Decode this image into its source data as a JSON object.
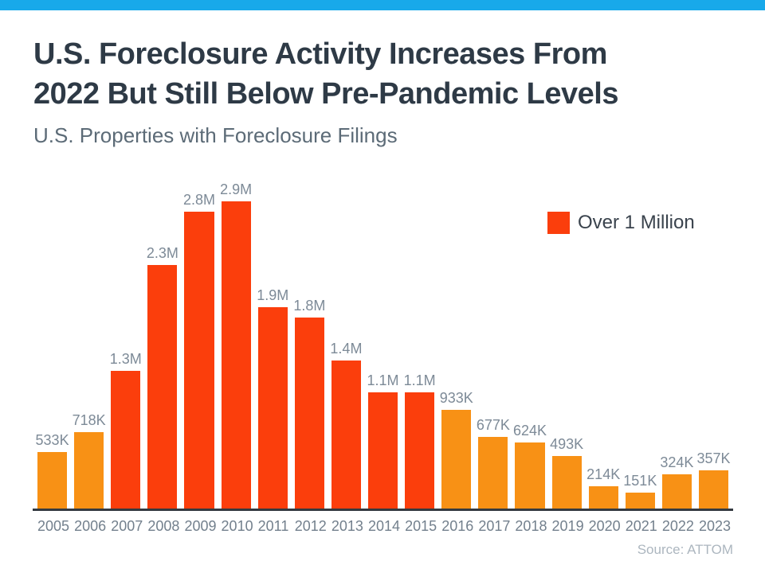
{
  "page": {
    "background": "#FFFFFF",
    "top_bar_color": "#18A9EA"
  },
  "header": {
    "title_lines": [
      "U.S. Foreclosure Activity Increases From",
      "2022 But Still Below Pre-Pandemic Levels"
    ],
    "subtitle": "U.S. Properties with Foreclosure Filings"
  },
  "legend": {
    "label": "Over 1 Million",
    "swatch_color": "#FB3E0C"
  },
  "source": {
    "text": "Source: ATTOM"
  },
  "chart_data": {
    "type": "bar",
    "title": "U.S. Properties with Foreclosure Filings",
    "xlabel": "",
    "ylabel": "",
    "categories": [
      "2005",
      "2006",
      "2007",
      "2008",
      "2009",
      "2010",
      "2011",
      "2012",
      "2013",
      "2014",
      "2015",
      "2016",
      "2017",
      "2018",
      "2019",
      "2020",
      "2021",
      "2022",
      "2023"
    ],
    "values": [
      0.533,
      0.718,
      1.3,
      2.3,
      2.8,
      2.9,
      1.9,
      1.8,
      1.4,
      1.1,
      1.1,
      0.933,
      0.677,
      0.624,
      0.493,
      0.214,
      0.151,
      0.324,
      0.357
    ],
    "labels": [
      "533K",
      "718K",
      "1.3M",
      "2.3M",
      "2.8M",
      "2.9M",
      "1.9M",
      "1.8M",
      "1.4M",
      "1.1M",
      "1.1M",
      "933K",
      "677K",
      "624K",
      "493K",
      "214K",
      "151K",
      "324K",
      "357K"
    ],
    "ylim": [
      0,
      2.9
    ],
    "grid": false,
    "legend_position": "right",
    "threshold_over_color": 1.0,
    "colors": {
      "over_1_million": "#FB3E0C",
      "under_1_million": "#F89115",
      "axis_line": "#343A40",
      "value_label": "#7D8A97",
      "tick_label": "#73808D"
    }
  }
}
